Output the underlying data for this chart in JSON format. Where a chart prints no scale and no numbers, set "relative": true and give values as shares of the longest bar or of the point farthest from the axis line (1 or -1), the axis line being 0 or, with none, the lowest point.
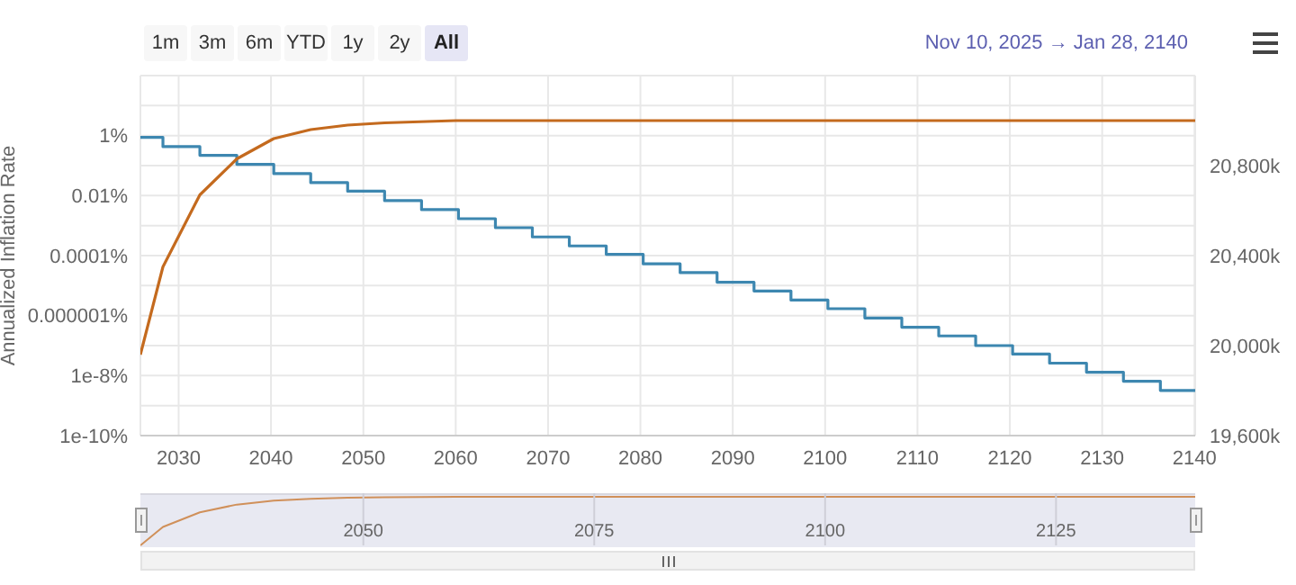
{
  "chart_data": [
    {
      "type": "line",
      "ylabel": "Annualized Inflation Rate",
      "annotations": [
        "1m",
        "3m",
        "6m",
        "YTD",
        "1y",
        "2y",
        "All",
        "Nov 10, 2025 → Jan 28, 2140"
      ],
      "xlim": [
        2025.86,
        2140.07
      ],
      "xticks": [
        2030,
        2040,
        2050,
        2060,
        2070,
        2080,
        2090,
        2100,
        2110,
        2120,
        2130,
        2140
      ],
      "ylim": [
        1e-10,
        100
      ],
      "log": true,
      "yticks": [
        {
          "value": 1e-10,
          "label": "1e-10%"
        },
        {
          "value": 1e-09,
          "label": null
        },
        {
          "value": 1e-08,
          "label": "1e-8%"
        },
        {
          "value": 1e-07,
          "label": null
        },
        {
          "value": 1e-06,
          "label": "0.000001%"
        },
        {
          "value": 1e-05,
          "label": null
        },
        {
          "value": 0.0001,
          "label": "0.0001%"
        },
        {
          "value": 0.001,
          "label": null
        },
        {
          "value": 0.01,
          "label": "0.01%"
        },
        {
          "value": 0.1,
          "label": null
        },
        {
          "value": 1,
          "label": "1%"
        },
        {
          "value": 10,
          "label": null
        },
        {
          "value": 100,
          "label": null
        }
      ],
      "y2lim": [
        19600,
        21200
      ],
      "y2ticks": [
        {
          "value": 19600,
          "label": "19,600k"
        },
        {
          "value": 20000,
          "label": "20,000k"
        },
        {
          "value": 20400,
          "label": "20,400k"
        },
        {
          "value": 20800,
          "label": "20,800k"
        }
      ],
      "grid": true,
      "marker": "none",
      "series": [
        {
          "type": "step",
          "color": "#3d87b0",
          "x": [
            2025.86,
            2028.3,
            2032.3,
            2036.3,
            2040.3,
            2044.3,
            2048.3,
            2052.3,
            2056.3,
            2060.3,
            2064.3,
            2068.3,
            2072.3,
            2076.3,
            2080.3,
            2084.3,
            2088.3,
            2092.3,
            2096.3,
            2100.3,
            2104.3,
            2108.3,
            2112.3,
            2116.3,
            2120.3,
            2124.3,
            2128.3,
            2132.3,
            2136.3,
            2140.07
          ],
          "values": [
            0.87,
            0.43,
            0.22,
            0.11,
            0.054,
            0.027,
            0.014,
            0.0068,
            0.0034,
            0.0017,
            0.00085,
            0.00042,
            0.00021,
            0.00011,
            5.3e-05,
            2.7e-05,
            1.3e-05,
            6.6e-06,
            3.3e-06,
            1.7e-06,
            8.3e-07,
            4.1e-07,
            2.1e-07,
            1e-07,
            5.2e-08,
            2.6e-08,
            1.3e-08,
            6.5e-09,
            3.2e-09,
            3.2e-09
          ]
        },
        {
          "type": "line",
          "axis": "y2",
          "color": "#c46a1e",
          "x": [
            2025.86,
            2028.3,
            2032.3,
            2036.3,
            2040.3,
            2044.3,
            2048.3,
            2052.3,
            2060,
            2070,
            2140.07
          ],
          "values": [
            19960,
            20350,
            20670,
            20830,
            20920,
            20960,
            20980,
            20990,
            21000,
            21000,
            21000
          ]
        }
      ]
    },
    {
      "type": "line",
      "relative": true,
      "xlim": [
        2025.86,
        2140.07
      ],
      "xticks": [
        2050,
        2075,
        2100,
        2125
      ],
      "tick_labels": "x",
      "grid": "x",
      "marker": "none",
      "series": [
        {
          "color": "#d0905a",
          "x": [
            2025.86,
            2028.3,
            2032.3,
            2036.3,
            2040.3,
            2044.3,
            2048.3,
            2052.3,
            2060,
            2070,
            2140.07
          ],
          "values": [
            0,
            0.38,
            0.68,
            0.84,
            0.92,
            0.96,
            0.98,
            0.99,
            1,
            1,
            1
          ]
        }
      ]
    }
  ]
}
